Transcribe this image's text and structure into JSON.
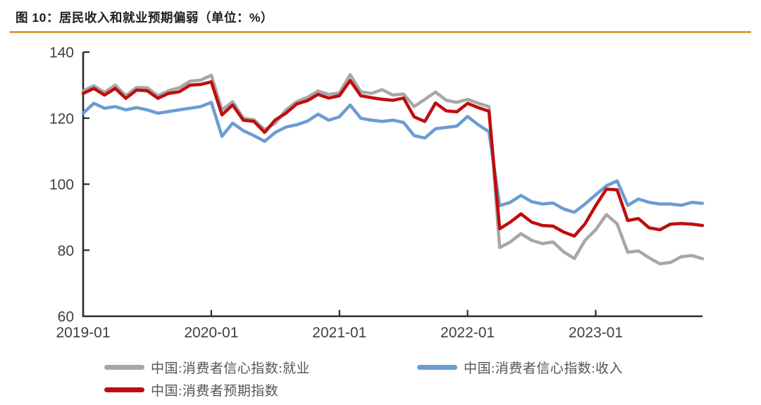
{
  "header": {
    "title": "图 10：居民收入和就业预期偏弱（单位：%）",
    "accent_color": "#D9A03C"
  },
  "chart_data": {
    "type": "line",
    "title": "图 10：居民收入和就业预期偏弱（单位：%）",
    "unit": "%",
    "x_start": "2019-01",
    "x_end": "2023-11",
    "x_tick_labels": [
      "2019-01",
      "2020-01",
      "2021-01",
      "2022-01",
      "2023-01"
    ],
    "x_tick_month_indices": [
      0,
      12,
      24,
      36,
      48
    ],
    "y_ticks": [
      140,
      120,
      100,
      80,
      60
    ],
    "ylim": [
      60,
      140
    ],
    "grid": false,
    "legend_position": "bottom",
    "axis_label_color": "#404040",
    "axis_line_color": "#2b2b2b",
    "series": [
      {
        "name": "中国:消费者信心指数:就业",
        "color": "#A7A7A7",
        "values": [
          128.3,
          129.8,
          127.8,
          130.0,
          126.8,
          129.3,
          129.2,
          126.8,
          128.3,
          129.2,
          131.2,
          131.5,
          133.0,
          122.5,
          125.0,
          120.0,
          119.5,
          116.5,
          118.5,
          122.5,
          125.0,
          126.3,
          128.2,
          127.2,
          127.6,
          133.2,
          128.0,
          127.5,
          128.6,
          127.0,
          127.3,
          123.5,
          125.7,
          127.9,
          125.4,
          124.8,
          125.7,
          124.5,
          123.5,
          80.8,
          82.5,
          85.0,
          83.0,
          82.0,
          82.5,
          79.5,
          77.5,
          83.0,
          86.2,
          90.8,
          88.0,
          79.4,
          79.8,
          77.7,
          75.9,
          76.3,
          78.0,
          78.4,
          77.4
        ]
      },
      {
        "name": "中国:消费者信心指数:收入",
        "color": "#6B9CD2",
        "values": [
          121.5,
          124.5,
          123.0,
          123.5,
          122.5,
          123.2,
          122.5,
          121.5,
          122.0,
          122.5,
          123.0,
          123.5,
          124.8,
          114.5,
          118.5,
          116.2,
          114.7,
          113.0,
          115.7,
          117.3,
          118.0,
          119.1,
          121.2,
          119.4,
          120.4,
          124.0,
          120.0,
          119.4,
          119.0,
          119.4,
          118.7,
          114.7,
          114.0,
          116.8,
          117.2,
          117.6,
          120.5,
          118.0,
          115.9,
          93.5,
          94.5,
          96.6,
          94.7,
          94.0,
          94.3,
          92.5,
          91.5,
          94.0,
          96.8,
          99.5,
          101.0,
          93.6,
          95.5,
          94.5,
          94.0,
          94.0,
          93.6,
          94.5,
          94.2
        ]
      },
      {
        "name": "中国:消费者预期指数",
        "color": "#C00D0D",
        "values": [
          127.5,
          129.0,
          127.0,
          129.0,
          126.0,
          128.5,
          128.3,
          126.0,
          127.5,
          128.0,
          130.0,
          130.2,
          131.0,
          121.0,
          124.0,
          119.4,
          119.0,
          115.7,
          119.5,
          121.5,
          124.3,
          125.3,
          127.2,
          126.1,
          126.8,
          131.4,
          126.8,
          126.2,
          125.7,
          125.4,
          126.1,
          120.4,
          119.0,
          124.6,
          122.2,
          121.9,
          124.5,
          123.2,
          122.1,
          86.5,
          88.5,
          91.0,
          88.5,
          87.5,
          87.3,
          85.5,
          84.3,
          88.0,
          93.5,
          98.5,
          98.3,
          89.0,
          89.6,
          86.8,
          86.2,
          87.9,
          88.1,
          87.9,
          87.5
        ]
      }
    ]
  }
}
